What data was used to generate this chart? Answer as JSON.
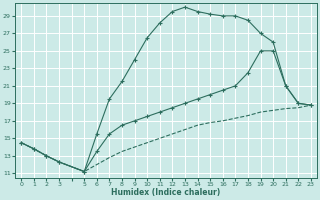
{
  "xlabel": "Humidex (Indice chaleur)",
  "bg_color": "#cceae7",
  "line_color": "#2d6e5e",
  "grid_color": "#ffffff",
  "minor_grid_color": "#e0f5f2",
  "yticks": [
    11,
    13,
    15,
    17,
    19,
    21,
    23,
    25,
    27,
    29
  ],
  "xtick_labels": [
    "0",
    "1",
    "2",
    "3",
    "",
    "5",
    "6",
    "7",
    "8",
    "9",
    "10",
    "11",
    "12",
    "13",
    "14",
    "15",
    "16",
    "17",
    "18",
    "19",
    "20",
    "21",
    "22",
    "23"
  ],
  "xtick_positions": [
    0,
    1,
    2,
    3,
    4,
    5,
    6,
    7,
    8,
    9,
    10,
    11,
    12,
    13,
    14,
    15,
    16,
    17,
    18,
    19,
    20,
    21,
    22,
    23
  ],
  "xlim": [
    -0.5,
    23.5
  ],
  "ylim": [
    10.5,
    30.5
  ],
  "line1_x": [
    0,
    1,
    2,
    3,
    5,
    6,
    7,
    8,
    9,
    10,
    11,
    12,
    13,
    14,
    15,
    16,
    17,
    18,
    19,
    20,
    21,
    22,
    23
  ],
  "line1_y": [
    14.5,
    13.8,
    13.0,
    12.3,
    11.2,
    15.5,
    19.5,
    21.5,
    24.0,
    26.5,
    28.2,
    29.5,
    30.0,
    29.5,
    29.2,
    29.0,
    29.0,
    28.5,
    27.0,
    26.0,
    21.0,
    19.0,
    18.8
  ],
  "line2_x": [
    0,
    1,
    2,
    3,
    5,
    6,
    7,
    8,
    9,
    10,
    11,
    12,
    13,
    14,
    15,
    16,
    17,
    18,
    19,
    20,
    21,
    22,
    23
  ],
  "line2_y": [
    14.5,
    13.8,
    13.0,
    12.3,
    11.2,
    13.5,
    15.5,
    16.5,
    17.0,
    17.5,
    18.0,
    18.5,
    19.0,
    19.5,
    20.0,
    20.5,
    21.0,
    22.5,
    25.0,
    25.0,
    21.0,
    19.0,
    18.8
  ],
  "line3_x": [
    0,
    1,
    2,
    3,
    5,
    6,
    7,
    8,
    9,
    10,
    11,
    12,
    13,
    14,
    15,
    16,
    17,
    18,
    19,
    20,
    21,
    22,
    23
  ],
  "line3_y": [
    14.5,
    13.8,
    13.0,
    12.3,
    11.2,
    12.0,
    12.8,
    13.5,
    14.0,
    14.5,
    15.0,
    15.5,
    16.0,
    16.5,
    16.8,
    17.0,
    17.3,
    17.6,
    18.0,
    18.2,
    18.4,
    18.5,
    18.8
  ]
}
